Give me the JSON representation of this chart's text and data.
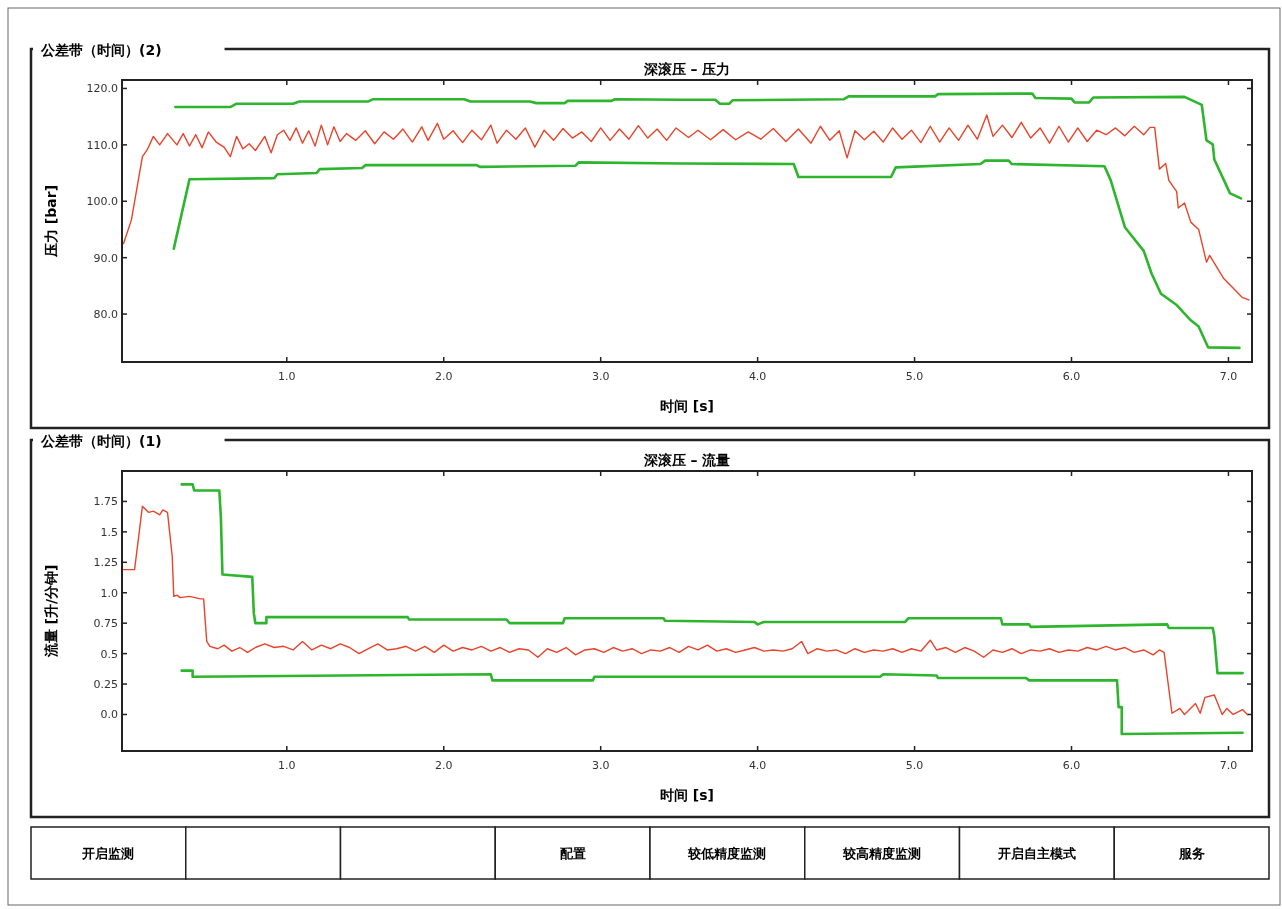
{
  "chart_data": [
    {
      "type": "line",
      "title": "深滚压 – 压力",
      "xlabel": "时间 [s]",
      "ylabel": "压力 [bar]",
      "annotations": [
        "公差带（时间）(2)"
      ],
      "xlim": [
        -0.05,
        7.15
      ],
      "ylim": [
        71.5,
        121.5
      ],
      "xticks": [
        {
          "value": 1,
          "label": "1.0"
        },
        {
          "value": 2,
          "label": "2.0"
        },
        {
          "value": 3,
          "label": "3.0"
        },
        {
          "value": 4,
          "label": "4.0"
        },
        {
          "value": 5,
          "label": "5.0"
        },
        {
          "value": 6,
          "label": "6.0"
        },
        {
          "value": 7,
          "label": "7.0"
        }
      ],
      "yticks": [
        {
          "value": 80,
          "label": "80.0"
        },
        {
          "value": 90,
          "label": "90.0"
        },
        {
          "value": 100,
          "label": "100.0"
        },
        {
          "value": 110,
          "label": "110.0"
        },
        {
          "value": 120,
          "label": "120.0"
        }
      ],
      "series": [
        {
          "color": "#2db52d",
          "x": [
            0.29,
            0.64,
            0.68,
            1.04,
            1.08,
            1.52,
            1.55,
            2.13,
            2.17,
            2.55,
            2.59,
            2.77,
            2.79,
            3.07,
            3.09,
            3.51,
            3.73,
            3.76,
            3.82,
            3.84,
            4.55,
            4.58,
            5.13,
            5.15,
            5.75,
            5.77,
            6.0,
            6.02,
            6.11,
            6.14,
            6.72,
            6.83,
            6.86,
            6.9,
            6.91,
            7.01,
            7.08
          ],
          "values": [
            116.7,
            116.7,
            117.3,
            117.3,
            117.7,
            117.7,
            118.1,
            118.1,
            117.7,
            117.7,
            117.4,
            117.4,
            117.8,
            117.8,
            118.1,
            118.0,
            118.0,
            117.3,
            117.3,
            117.9,
            118.1,
            118.6,
            118.6,
            119.0,
            119.1,
            118.3,
            118.2,
            117.5,
            117.5,
            118.4,
            118.5,
            117.1,
            110.8,
            110.1,
            107.4,
            101.4,
            100.5
          ]
        },
        {
          "color": "#2db52d",
          "x": [
            0.28,
            0.38,
            0.92,
            0.94,
            1.19,
            1.21,
            1.48,
            1.5,
            2.21,
            2.23,
            2.84,
            2.86,
            3.51,
            4.23,
            4.26,
            4.85,
            4.88,
            5.42,
            5.45,
            5.6,
            5.62,
            6.21,
            6.25,
            6.34,
            6.46,
            6.51,
            6.57,
            6.67,
            6.76,
            6.81,
            6.87,
            7.07
          ],
          "values": [
            91.6,
            103.9,
            104.1,
            104.8,
            105.0,
            105.7,
            105.9,
            106.4,
            106.4,
            106.1,
            106.3,
            106.9,
            106.7,
            106.6,
            104.3,
            104.3,
            106.0,
            106.6,
            107.2,
            107.2,
            106.6,
            106.2,
            103.7,
            95.4,
            91.2,
            87.2,
            83.6,
            81.6,
            78.9,
            77.8,
            74.1,
            74.0
          ]
        },
        {
          "color": "#e8442a",
          "x": [
            -0.04,
            0.01,
            0.08,
            0.11,
            0.15,
            0.19,
            0.24,
            0.3,
            0.34,
            0.38,
            0.42,
            0.46,
            0.5,
            0.55,
            0.6,
            0.64,
            0.68,
            0.72,
            0.76,
            0.8,
            0.86,
            0.9,
            0.94,
            0.98,
            1.02,
            1.06,
            1.1,
            1.14,
            1.18,
            1.22,
            1.26,
            1.3,
            1.34,
            1.38,
            1.44,
            1.5,
            1.56,
            1.62,
            1.68,
            1.74,
            1.8,
            1.86,
            1.9,
            1.96,
            2.0,
            2.06,
            2.12,
            2.18,
            2.24,
            2.3,
            2.34,
            2.4,
            2.46,
            2.52,
            2.58,
            2.64,
            2.7,
            2.76,
            2.82,
            2.88,
            2.94,
            3.0,
            3.06,
            3.12,
            3.18,
            3.24,
            3.3,
            3.36,
            3.42,
            3.48,
            3.56,
            3.62,
            3.7,
            3.78,
            3.86,
            3.94,
            4.02,
            4.1,
            4.18,
            4.26,
            4.34,
            4.4,
            4.46,
            4.52,
            4.57,
            4.62,
            4.68,
            4.74,
            4.8,
            4.86,
            4.92,
            4.98,
            5.04,
            5.1,
            5.16,
            5.22,
            5.28,
            5.34,
            5.4,
            5.46,
            5.5,
            5.56,
            5.62,
            5.68,
            5.74,
            5.8,
            5.86,
            5.92,
            5.98,
            6.04,
            6.1,
            6.16,
            6.22,
            6.28,
            6.34,
            6.4,
            6.46,
            6.5,
            6.53,
            6.56,
            6.6,
            6.62,
            6.67,
            6.68,
            6.72,
            6.76,
            6.81,
            6.86,
            6.88,
            6.97,
            7.04,
            7.09,
            7.13
          ],
          "values": [
            92.5,
            96.7,
            107.9,
            109.1,
            111.5,
            110.0,
            112.0,
            110.0,
            112.0,
            109.8,
            111.8,
            109.5,
            112.3,
            110.5,
            109.6,
            107.9,
            111.5,
            109.3,
            110.2,
            109.0,
            111.5,
            108.6,
            111.8,
            112.6,
            110.8,
            113.0,
            110.3,
            112.5,
            109.8,
            113.5,
            110.0,
            113.2,
            110.6,
            112.0,
            110.8,
            112.5,
            110.2,
            112.3,
            111.0,
            112.8,
            110.5,
            113.2,
            110.8,
            113.8,
            111.0,
            112.5,
            110.4,
            112.6,
            110.9,
            113.5,
            110.3,
            112.6,
            111.0,
            113.0,
            109.6,
            112.6,
            110.8,
            112.9,
            111.2,
            112.3,
            110.6,
            113.0,
            110.8,
            112.8,
            111.0,
            113.4,
            111.2,
            112.8,
            110.8,
            113.0,
            111.3,
            112.6,
            110.9,
            112.7,
            110.9,
            112.3,
            111.0,
            112.9,
            110.6,
            112.8,
            110.3,
            113.3,
            110.8,
            112.5,
            107.7,
            112.5,
            110.9,
            112.4,
            110.5,
            113.0,
            111.0,
            112.6,
            110.4,
            113.3,
            110.5,
            113.0,
            110.8,
            113.5,
            111.0,
            115.3,
            111.5,
            113.5,
            111.3,
            114.0,
            111.2,
            113.0,
            110.3,
            113.3,
            110.5,
            113.0,
            110.6,
            112.6,
            111.8,
            113.0,
            111.6,
            113.3,
            111.8,
            113.1,
            113.1,
            105.7,
            106.7,
            103.7,
            101.7,
            98.8,
            99.7,
            96.3,
            95.0,
            89.2,
            90.4,
            86.3,
            84.3,
            82.9,
            82.5
          ]
        }
      ]
    },
    {
      "type": "line",
      "title": "深滚压 – 流量",
      "xlabel": "时间 [s]",
      "ylabel": "流量 [升/分钟]",
      "annotations": [
        "公差带（时间）(1)"
      ],
      "xlim": [
        -0.05,
        7.15
      ],
      "ylim": [
        -0.3,
        2.0
      ],
      "xticks": [
        {
          "value": 1,
          "label": "1.0"
        },
        {
          "value": 2,
          "label": "2.0"
        },
        {
          "value": 3,
          "label": "3.0"
        },
        {
          "value": 4,
          "label": "4.0"
        },
        {
          "value": 5,
          "label": "5.0"
        },
        {
          "value": 6,
          "label": "6.0"
        },
        {
          "value": 7,
          "label": "7.0"
        }
      ],
      "yticks": [
        {
          "value": 0,
          "label": "0.0"
        },
        0.25,
        0.5,
        0.75,
        {
          "value": 1,
          "label": "1.0"
        },
        1.25,
        1.5,
        1.75
      ],
      "series": [
        {
          "color": "#2db52d",
          "x": [
            0.33,
            0.4,
            0.41,
            0.57,
            0.58,
            0.59,
            0.78,
            0.79,
            0.8,
            0.87,
            0.87,
            1.77,
            1.78,
            2.4,
            2.42,
            2.76,
            2.77,
            3.4,
            3.41,
            3.98,
            4.0,
            4.04,
            4.94,
            4.96,
            5.55,
            5.56,
            5.73,
            5.74,
            6.61,
            6.62,
            6.9,
            6.91,
            6.93,
            7.09
          ],
          "values": [
            1.89,
            1.89,
            1.84,
            1.84,
            1.62,
            1.15,
            1.13,
            0.83,
            0.75,
            0.75,
            0.8,
            0.8,
            0.78,
            0.78,
            0.75,
            0.75,
            0.79,
            0.79,
            0.77,
            0.76,
            0.74,
            0.76,
            0.76,
            0.79,
            0.79,
            0.74,
            0.74,
            0.72,
            0.74,
            0.71,
            0.71,
            0.64,
            0.34,
            0.34
          ]
        },
        {
          "color": "#2db52d",
          "x": [
            0.33,
            0.4,
            0.4,
            2.3,
            2.31,
            2.95,
            2.96,
            3.51,
            4.78,
            4.8,
            5.14,
            5.15,
            5.71,
            5.73,
            6.29,
            6.3,
            6.32,
            6.32,
            7.09
          ],
          "values": [
            0.36,
            0.36,
            0.31,
            0.33,
            0.28,
            0.28,
            0.31,
            0.31,
            0.31,
            0.33,
            0.32,
            0.3,
            0.3,
            0.28,
            0.28,
            0.06,
            0.06,
            -0.16,
            -0.15
          ]
        },
        {
          "color": "#e8442a",
          "x": [
            -0.04,
            0.03,
            0.06,
            0.08,
            0.12,
            0.15,
            0.19,
            0.21,
            0.24,
            0.27,
            0.28,
            0.3,
            0.32,
            0.38,
            0.45,
            0.47,
            0.49,
            0.51,
            0.56,
            0.6,
            0.65,
            0.7,
            0.75,
            0.8,
            0.86,
            0.92,
            0.98,
            1.04,
            1.1,
            1.16,
            1.22,
            1.28,
            1.34,
            1.4,
            1.46,
            1.52,
            1.58,
            1.64,
            1.7,
            1.76,
            1.82,
            1.88,
            1.94,
            2.0,
            2.06,
            2.12,
            2.18,
            2.24,
            2.3,
            2.36,
            2.42,
            2.48,
            2.54,
            2.6,
            2.66,
            2.72,
            2.78,
            2.84,
            2.9,
            2.96,
            3.02,
            3.08,
            3.14,
            3.2,
            3.26,
            3.32,
            3.38,
            3.44,
            3.5,
            3.56,
            3.62,
            3.68,
            3.74,
            3.8,
            3.86,
            3.92,
            3.98,
            4.04,
            4.1,
            4.16,
            4.22,
            4.28,
            4.32,
            4.38,
            4.44,
            4.5,
            4.56,
            4.62,
            4.68,
            4.74,
            4.8,
            4.86,
            4.92,
            4.98,
            5.04,
            5.1,
            5.14,
            5.2,
            5.26,
            5.32,
            5.38,
            5.44,
            5.5,
            5.56,
            5.62,
            5.68,
            5.74,
            5.8,
            5.86,
            5.92,
            5.98,
            6.04,
            6.1,
            6.16,
            6.22,
            6.28,
            6.34,
            6.4,
            6.46,
            6.52,
            6.56,
            6.59,
            6.64,
            6.69,
            6.72,
            6.79,
            6.82,
            6.85,
            6.91,
            6.96,
            6.99,
            7.03,
            7.09,
            7.12
          ],
          "values": [
            1.19,
            1.19,
            1.5,
            1.71,
            1.66,
            1.67,
            1.64,
            1.68,
            1.66,
            1.3,
            0.97,
            0.98,
            0.96,
            0.97,
            0.95,
            0.95,
            0.6,
            0.56,
            0.54,
            0.57,
            0.52,
            0.55,
            0.51,
            0.55,
            0.58,
            0.55,
            0.56,
            0.53,
            0.6,
            0.53,
            0.57,
            0.54,
            0.58,
            0.55,
            0.5,
            0.54,
            0.58,
            0.53,
            0.54,
            0.56,
            0.52,
            0.56,
            0.51,
            0.57,
            0.52,
            0.55,
            0.53,
            0.56,
            0.52,
            0.55,
            0.51,
            0.54,
            0.53,
            0.47,
            0.54,
            0.51,
            0.55,
            0.49,
            0.53,
            0.54,
            0.51,
            0.55,
            0.52,
            0.54,
            0.5,
            0.53,
            0.52,
            0.55,
            0.51,
            0.56,
            0.53,
            0.57,
            0.52,
            0.54,
            0.51,
            0.53,
            0.55,
            0.52,
            0.53,
            0.52,
            0.54,
            0.6,
            0.5,
            0.54,
            0.52,
            0.53,
            0.5,
            0.54,
            0.51,
            0.53,
            0.52,
            0.54,
            0.51,
            0.54,
            0.52,
            0.61,
            0.53,
            0.55,
            0.51,
            0.55,
            0.52,
            0.47,
            0.53,
            0.51,
            0.54,
            0.5,
            0.53,
            0.52,
            0.54,
            0.51,
            0.53,
            0.52,
            0.55,
            0.53,
            0.56,
            0.53,
            0.55,
            0.51,
            0.53,
            0.49,
            0.53,
            0.51,
            0.01,
            0.05,
            0.0,
            0.09,
            0.01,
            0.14,
            0.16,
            0.0,
            0.05,
            0.0,
            0.04,
            0.0
          ]
        }
      ]
    },
    {
      "type": "other",
      "categories": [
        "开启监测",
        null,
        null,
        "配置",
        "较低精度监测",
        "较高精度监测",
        "开启自主模式",
        "服务"
      ]
    }
  ]
}
